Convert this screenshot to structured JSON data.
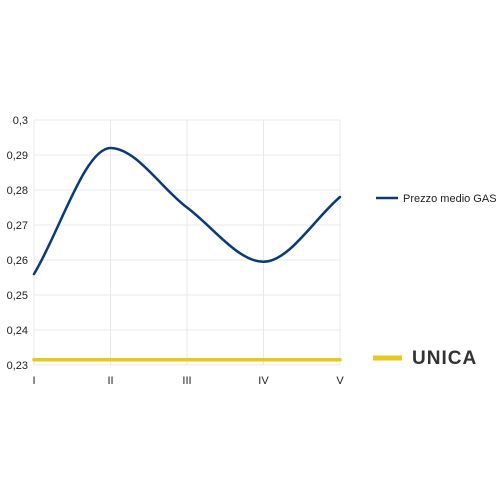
{
  "chart_data": {
    "type": "line",
    "categories": [
      "I",
      "II",
      "III",
      "IV",
      "V"
    ],
    "ylim": [
      0.23,
      0.3
    ],
    "yticks": [
      "0,23",
      "0,24",
      "0,25",
      "0,26",
      "0,27",
      "0,28",
      "0,29",
      "0,3"
    ],
    "grid": true,
    "legend_position": "right",
    "series": [
      {
        "name": "Prezzo medio GAS",
        "values": [
          0.256,
          0.292,
          0.275,
          0.2595,
          0.278
        ],
        "color": "#0a3a7a",
        "smooth": true
      },
      {
        "name": "UNICA",
        "values": [
          0.2315,
          0.2315,
          0.2315,
          0.2315,
          0.2315
        ],
        "color": "#e8c81a",
        "smooth": false
      }
    ]
  }
}
